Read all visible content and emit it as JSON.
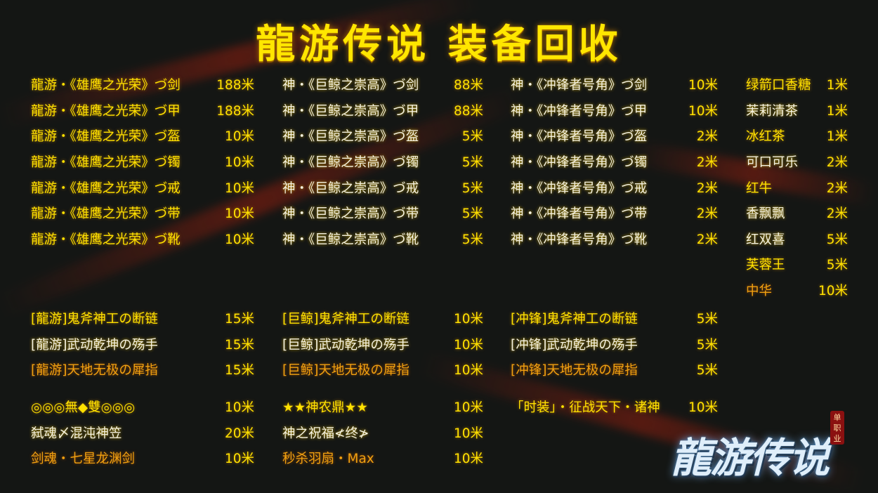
{
  "title": "龍游传说  装备回收",
  "colors": {
    "gold": "#ffe100",
    "white": "#f4f1e0",
    "orange": "#f0a010",
    "background": "#141614"
  },
  "section1": [
    {
      "items": [
        {
          "name": "龍游・《雄鹰之光荣》づ剑",
          "value": "188米",
          "tone": "gold"
        },
        {
          "name": "龍游・《雄鹰之光荣》づ甲",
          "value": "188米",
          "tone": "gold"
        },
        {
          "name": "龍游・《雄鹰之光荣》づ盔",
          "value": "10米",
          "tone": "gold"
        },
        {
          "name": "龍游・《雄鹰之光荣》づ镯",
          "value": "10米",
          "tone": "gold"
        },
        {
          "name": "龍游・《雄鹰之光荣》づ戒",
          "value": "10米",
          "tone": "gold"
        },
        {
          "name": "龍游・《雄鹰之光荣》づ带",
          "value": "10米",
          "tone": "gold"
        },
        {
          "name": "龍游・《雄鹰之光荣》づ靴",
          "value": "10米",
          "tone": "gold"
        }
      ]
    },
    {
      "items": [
        {
          "name": "神・《巨鲸之崇高》づ剑",
          "value": "88米",
          "tone": "white"
        },
        {
          "name": "神・《巨鲸之崇高》づ甲",
          "value": "88米",
          "tone": "white"
        },
        {
          "name": "神・《巨鲸之崇高》づ盔",
          "value": "5米",
          "tone": "white"
        },
        {
          "name": "神・《巨鲸之崇高》づ镯",
          "value": "5米",
          "tone": "white"
        },
        {
          "name": "神・《巨鲸之崇高》づ戒",
          "value": "5米",
          "tone": "white"
        },
        {
          "name": "神・《巨鲸之崇高》づ带",
          "value": "5米",
          "tone": "white"
        },
        {
          "name": "神・《巨鲸之崇高》づ靴",
          "value": "5米",
          "tone": "white"
        }
      ]
    },
    {
      "items": [
        {
          "name": "神・《冲锋者号角》づ剑",
          "value": "10米",
          "tone": "white"
        },
        {
          "name": "神・《冲锋者号角》づ甲",
          "value": "10米",
          "tone": "white"
        },
        {
          "name": "神・《冲锋者号角》づ盔",
          "value": "2米",
          "tone": "white"
        },
        {
          "name": "神・《冲锋者号角》づ镯",
          "value": "2米",
          "tone": "white"
        },
        {
          "name": "神・《冲锋者号角》づ戒",
          "value": "2米",
          "tone": "white"
        },
        {
          "name": "神・《冲锋者号角》づ带",
          "value": "2米",
          "tone": "white"
        },
        {
          "name": "神・《冲锋者号角》づ靴",
          "value": "2米",
          "tone": "white"
        }
      ]
    },
    {
      "items": [
        {
          "name": "绿箭口香糖",
          "value": "1米",
          "tone": "gold"
        },
        {
          "name": "茉莉清茶",
          "value": "1米",
          "tone": "white"
        },
        {
          "name": "冰红茶",
          "value": "1米",
          "tone": "gold"
        },
        {
          "name": "可口可乐",
          "value": "2米",
          "tone": "white"
        },
        {
          "name": "红牛",
          "value": "2米",
          "tone": "gold"
        },
        {
          "name": "香飘飘",
          "value": "2米",
          "tone": "white"
        },
        {
          "name": "红双喜",
          "value": "5米",
          "tone": "white"
        },
        {
          "name": "芙蓉王",
          "value": "5米",
          "tone": "gold"
        },
        {
          "name": "中华",
          "value": "10米",
          "tone": "orange"
        }
      ]
    }
  ],
  "section2": [
    {
      "items": [
        {
          "name": "[龍游]鬼斧神工の断链",
          "value": "15米",
          "tone": "gold"
        },
        {
          "name": "[龍游]武动乾坤の殇手",
          "value": "15米",
          "tone": "white"
        },
        {
          "name": "[龍游]天地无极の犀指",
          "value": "15米",
          "tone": "orange"
        }
      ]
    },
    {
      "items": [
        {
          "name": "[巨鲸]鬼斧神工の断链",
          "value": "10米",
          "tone": "gold"
        },
        {
          "name": "[巨鲸]武动乾坤の殇手",
          "value": "10米",
          "tone": "white"
        },
        {
          "name": "[巨鲸]天地无极の犀指",
          "value": "10米",
          "tone": "orange"
        }
      ]
    },
    {
      "items": [
        {
          "name": "[冲锋]鬼斧神工の断链",
          "value": "5米",
          "tone": "gold"
        },
        {
          "name": "[冲锋]武动乾坤の殇手",
          "value": "5米",
          "tone": "white"
        },
        {
          "name": "[冲锋]天地无极の犀指",
          "value": "5米",
          "tone": "orange"
        }
      ]
    }
  ],
  "section3": [
    {
      "items": [
        {
          "name": "◎◎◎無◆雙◎◎◎",
          "value": "10米",
          "tone": "gold"
        },
        {
          "name": "弑魂〆混沌神笠",
          "value": "20米",
          "tone": "white"
        },
        {
          "name": "剑魂・七星龙渊剑",
          "value": "10米",
          "tone": "orange"
        }
      ]
    },
    {
      "items": [
        {
          "name": "★★神农鼎★★",
          "value": "10米",
          "tone": "gold"
        },
        {
          "name": "神之祝福≮终≯",
          "value": "10米",
          "tone": "white"
        },
        {
          "name": "秒杀羽扇・Max",
          "value": "10米",
          "tone": "orange"
        }
      ]
    },
    {
      "items": [
        {
          "name": "「时装」・征战天下・诸神",
          "value": "10米",
          "tone": "gold"
        }
      ]
    }
  ],
  "logo": {
    "text": "龍游传说",
    "seal": "单职业"
  }
}
